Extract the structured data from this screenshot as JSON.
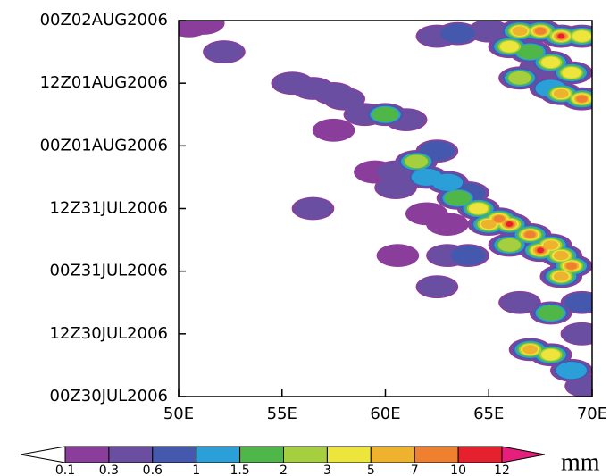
{
  "chart_data": {
    "type": "contour",
    "xlim": [
      50,
      70
    ],
    "xticks": [
      {
        "value": 50,
        "label": "50E"
      },
      {
        "value": 55,
        "label": "55E"
      },
      {
        "value": 60,
        "label": "60E"
      },
      {
        "value": 65,
        "label": "65E"
      },
      {
        "value": 70,
        "label": "70E"
      }
    ],
    "ylim": [
      0,
      72
    ],
    "yticks": [
      {
        "value": 0,
        "label": "00Z30JUL2006"
      },
      {
        "value": 12,
        "label": "12Z30JUL2006"
      },
      {
        "value": 24,
        "label": "00Z31JUL2006"
      },
      {
        "value": 36,
        "label": "12Z31JUL2006"
      },
      {
        "value": 48,
        "label": "00Z01AUG2006"
      },
      {
        "value": 60,
        "label": "12Z01AUG2006"
      },
      {
        "value": 72,
        "label": "00Z02AUG2006"
      }
    ],
    "x": [
      50.5,
      51.2,
      52.2,
      55.5,
      56.5,
      57.5,
      58,
      57.5,
      59,
      60,
      61,
      62.5,
      63.5,
      65,
      66.5,
      67.5,
      68.5,
      69.5,
      66,
      67,
      68,
      69,
      69.5,
      68.5,
      66.5,
      68,
      67.5,
      61.5,
      62.5,
      60.5,
      62,
      63,
      64,
      63.5,
      64.5,
      65.5,
      66,
      65,
      67,
      67.5,
      68,
      68.5,
      69,
      68.5,
      66,
      63,
      64,
      60.5,
      59.5,
      62,
      63,
      56.5,
      60.6,
      62.5,
      66.5,
      69.5,
      68,
      69.5,
      67,
      68,
      69,
      69.7
    ],
    "y": [
      71,
      71.5,
      66,
      60,
      59,
      58,
      57,
      51,
      54,
      54,
      53,
      69,
      69.5,
      70,
      70,
      70,
      69,
      69,
      67,
      66,
      64,
      62,
      57,
      58,
      61,
      59,
      63,
      45,
      47,
      43,
      42,
      41,
      39,
      38,
      36,
      34,
      33,
      33,
      31,
      28,
      29,
      27,
      25,
      23,
      29,
      27,
      27,
      40,
      43,
      35,
      33,
      36,
      27,
      21,
      18,
      18,
      16,
      12,
      9,
      8,
      5,
      2
    ],
    "values": [
      0.2,
      0.2,
      0.5,
      0.3,
      0.5,
      0.3,
      0.3,
      0.2,
      0.4,
      1.8,
      0.5,
      0.4,
      0.8,
      0.3,
      5,
      8,
      11,
      3,
      3,
      1.5,
      4,
      3,
      8,
      5,
      2,
      1.2,
      0.5,
      2.5,
      0.8,
      0.5,
      1.2,
      1,
      0.8,
      1.5,
      3,
      8,
      11,
      6,
      7,
      10,
      6,
      5,
      8,
      5,
      2,
      0.5,
      0.6,
      0.3,
      0.2,
      0.2,
      0.2,
      0.3,
      0.2,
      0.3,
      0.3,
      0.8,
      1.5,
      0.5,
      5,
      3,
      1,
      0.3
    ],
    "levels": [
      0.1,
      0.3,
      0.6,
      1,
      1.5,
      2,
      3,
      5,
      7,
      10,
      12
    ],
    "colors": [
      "#ffffff",
      "#8b3d9b",
      "#6a4ea1",
      "#4459ad",
      "#2b9fd8",
      "#4fb748",
      "#a6cf3f",
      "#eee53c",
      "#efb22f",
      "#ef8030",
      "#e6212e",
      "#e51f7b"
    ],
    "unit": "mm"
  }
}
